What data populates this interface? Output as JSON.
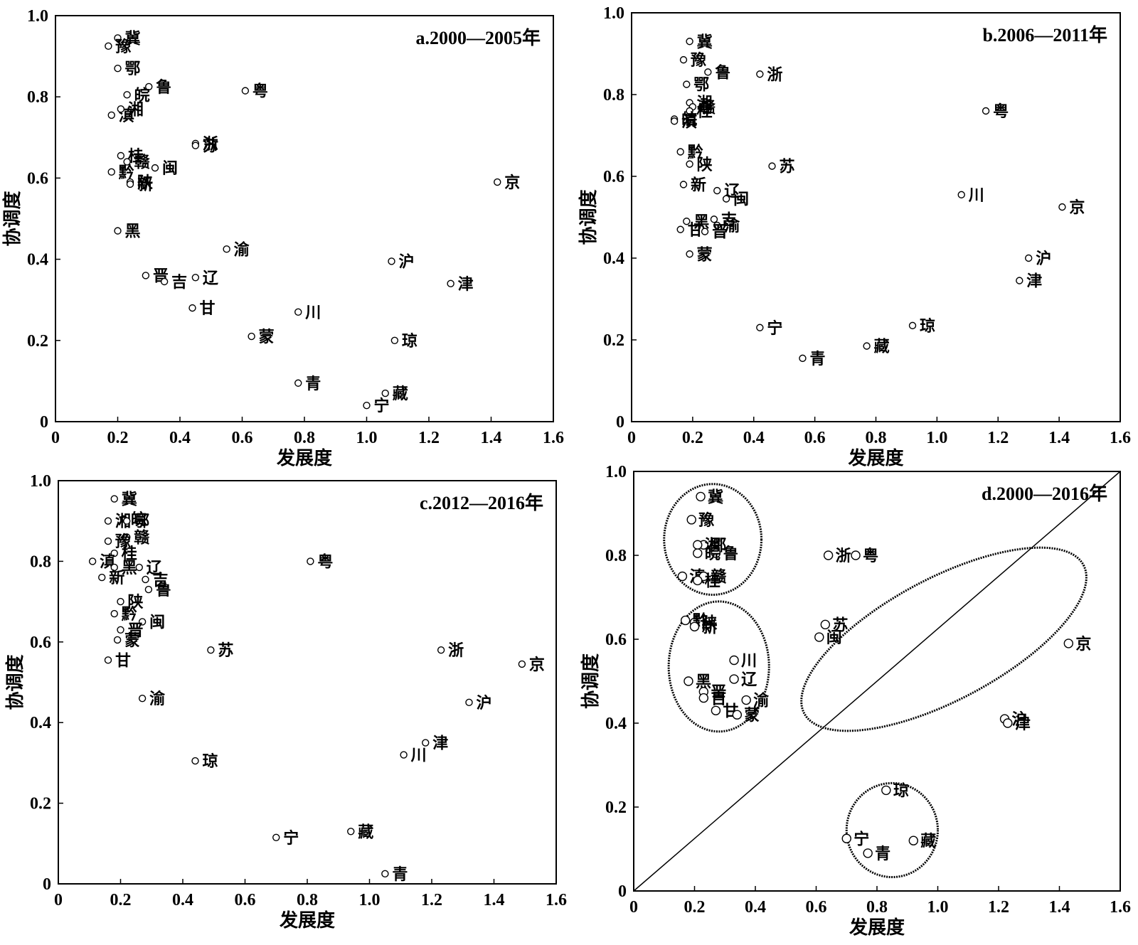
{
  "chart_data": [
    {
      "type": "scatter",
      "title": "a.2000—2005年",
      "xlabel": "发展度",
      "ylabel": "协调度",
      "xlim": [
        0,
        1.6
      ],
      "ylim": [
        0,
        1.0
      ],
      "xticks": [
        "0",
        "0.2",
        "0.4",
        "0.6",
        "0.8",
        "1.0",
        "1.2",
        "1.4",
        "1.6"
      ],
      "yticks": [
        "0",
        "0.2",
        "0.4",
        "0.6",
        "0.8",
        "1.0"
      ],
      "points": [
        {
          "label": "冀",
          "x": 0.2,
          "y": 0.945
        },
        {
          "label": "豫",
          "x": 0.17,
          "y": 0.925
        },
        {
          "label": "鄂",
          "x": 0.2,
          "y": 0.87
        },
        {
          "label": "鲁",
          "x": 0.3,
          "y": 0.825
        },
        {
          "label": "粤",
          "x": 0.61,
          "y": 0.815
        },
        {
          "label": "滇",
          "x": 0.18,
          "y": 0.755
        },
        {
          "label": "皖",
          "x": 0.23,
          "y": 0.805
        },
        {
          "label": "湘",
          "x": 0.21,
          "y": 0.77
        },
        {
          "label": "浙",
          "x": 0.45,
          "y": 0.685
        },
        {
          "label": "苏",
          "x": 0.45,
          "y": 0.68
        },
        {
          "label": "桂",
          "x": 0.21,
          "y": 0.655
        },
        {
          "label": "黔",
          "x": 0.18,
          "y": 0.615
        },
        {
          "label": "赣",
          "x": 0.23,
          "y": 0.64
        },
        {
          "label": "闽",
          "x": 0.32,
          "y": 0.625
        },
        {
          "label": "陕",
          "x": 0.24,
          "y": 0.59
        },
        {
          "label": "新",
          "x": 0.24,
          "y": 0.585
        },
        {
          "label": "京",
          "x": 1.42,
          "y": 0.59
        },
        {
          "label": "黑",
          "x": 0.2,
          "y": 0.47
        },
        {
          "label": "渝",
          "x": 0.55,
          "y": 0.425
        },
        {
          "label": "晋",
          "x": 0.29,
          "y": 0.36
        },
        {
          "label": "吉",
          "x": 0.35,
          "y": 0.345
        },
        {
          "label": "辽",
          "x": 0.45,
          "y": 0.355
        },
        {
          "label": "沪",
          "x": 1.08,
          "y": 0.395
        },
        {
          "label": "津",
          "x": 1.27,
          "y": 0.34
        },
        {
          "label": "甘",
          "x": 0.44,
          "y": 0.28
        },
        {
          "label": "川",
          "x": 0.78,
          "y": 0.27
        },
        {
          "label": "蒙",
          "x": 0.63,
          "y": 0.21
        },
        {
          "label": "琼",
          "x": 1.09,
          "y": 0.2
        },
        {
          "label": "青",
          "x": 0.78,
          "y": 0.095
        },
        {
          "label": "藏",
          "x": 1.06,
          "y": 0.07
        },
        {
          "label": "宁",
          "x": 1.0,
          "y": 0.04
        }
      ]
    },
    {
      "type": "scatter",
      "title": "b.2006—2011年",
      "xlabel": "发展度",
      "ylabel": "协调度",
      "xlim": [
        0,
        1.6
      ],
      "ylim": [
        0,
        1.0
      ],
      "xticks": [
        "0",
        "0.2",
        "0.4",
        "0.6",
        "0.8",
        "1.0",
        "1.2",
        "1.4",
        "1.6"
      ],
      "yticks": [
        "0",
        "0.2",
        "0.4",
        "0.6",
        "0.8",
        "1.0"
      ],
      "points": [
        {
          "label": "冀",
          "x": 0.19,
          "y": 0.93
        },
        {
          "label": "豫",
          "x": 0.17,
          "y": 0.885
        },
        {
          "label": "鲁",
          "x": 0.25,
          "y": 0.855
        },
        {
          "label": "浙",
          "x": 0.42,
          "y": 0.85
        },
        {
          "label": "鄂",
          "x": 0.18,
          "y": 0.825
        },
        {
          "label": "湘",
          "x": 0.19,
          "y": 0.78
        },
        {
          "label": "赣",
          "x": 0.2,
          "y": 0.77
        },
        {
          "label": "桂",
          "x": 0.19,
          "y": 0.76
        },
        {
          "label": "皖",
          "x": 0.14,
          "y": 0.74
        },
        {
          "label": "粤",
          "x": 1.16,
          "y": 0.76
        },
        {
          "label": "滇",
          "x": 0.14,
          "y": 0.735
        },
        {
          "label": "黔",
          "x": 0.16,
          "y": 0.66
        },
        {
          "label": "陕",
          "x": 0.19,
          "y": 0.63
        },
        {
          "label": "苏",
          "x": 0.46,
          "y": 0.625
        },
        {
          "label": "新",
          "x": 0.17,
          "y": 0.58
        },
        {
          "label": "辽",
          "x": 0.28,
          "y": 0.565
        },
        {
          "label": "闽",
          "x": 0.31,
          "y": 0.545
        },
        {
          "label": "川",
          "x": 1.08,
          "y": 0.555
        },
        {
          "label": "京",
          "x": 1.41,
          "y": 0.525
        },
        {
          "label": "吉",
          "x": 0.27,
          "y": 0.495
        },
        {
          "label": "黑",
          "x": 0.18,
          "y": 0.49
        },
        {
          "label": "渝",
          "x": 0.28,
          "y": 0.48
        },
        {
          "label": "甘",
          "x": 0.16,
          "y": 0.47
        },
        {
          "label": "晋",
          "x": 0.24,
          "y": 0.465
        },
        {
          "label": "蒙",
          "x": 0.19,
          "y": 0.41
        },
        {
          "label": "沪",
          "x": 1.3,
          "y": 0.4
        },
        {
          "label": "津",
          "x": 1.27,
          "y": 0.345
        },
        {
          "label": "琼",
          "x": 0.92,
          "y": 0.235
        },
        {
          "label": "宁",
          "x": 0.42,
          "y": 0.23
        },
        {
          "label": "藏",
          "x": 0.77,
          "y": 0.185
        },
        {
          "label": "青",
          "x": 0.56,
          "y": 0.155
        }
      ]
    },
    {
      "type": "scatter",
      "title": "c.2012—2016年",
      "xlabel": "发展度",
      "ylabel": "协调度",
      "xlim": [
        0,
        1.6
      ],
      "ylim": [
        0,
        1.0
      ],
      "xticks": [
        "0",
        "0.2",
        "0.4",
        "0.6",
        "0.8",
        "1.0",
        "1.2",
        "1.4",
        "1.6"
      ],
      "yticks": [
        "0",
        "0.2",
        "0.4",
        "0.6",
        "0.8",
        "1.0"
      ],
      "points": [
        {
          "label": "冀",
          "x": 0.18,
          "y": 0.955
        },
        {
          "label": "皖",
          "x": 0.21,
          "y": 0.905
        },
        {
          "label": "湘",
          "x": 0.16,
          "y": 0.9
        },
        {
          "label": "鄂",
          "x": 0.22,
          "y": 0.9
        },
        {
          "label": "赣",
          "x": 0.22,
          "y": 0.86
        },
        {
          "label": "豫",
          "x": 0.16,
          "y": 0.85
        },
        {
          "label": "桂",
          "x": 0.18,
          "y": 0.82
        },
        {
          "label": "滇",
          "x": 0.11,
          "y": 0.8
        },
        {
          "label": "粤",
          "x": 0.81,
          "y": 0.8
        },
        {
          "label": "辽",
          "x": 0.26,
          "y": 0.785
        },
        {
          "label": "黑",
          "x": 0.18,
          "y": 0.785
        },
        {
          "label": "吉",
          "x": 0.28,
          "y": 0.755
        },
        {
          "label": "新",
          "x": 0.14,
          "y": 0.76
        },
        {
          "label": "鲁",
          "x": 0.29,
          "y": 0.73
        },
        {
          "label": "陕",
          "x": 0.2,
          "y": 0.7
        },
        {
          "label": "黔",
          "x": 0.18,
          "y": 0.67
        },
        {
          "label": "闽",
          "x": 0.27,
          "y": 0.65
        },
        {
          "label": "晋",
          "x": 0.2,
          "y": 0.63
        },
        {
          "label": "蒙",
          "x": 0.19,
          "y": 0.605
        },
        {
          "label": "苏",
          "x": 0.49,
          "y": 0.58
        },
        {
          "label": "浙",
          "x": 1.23,
          "y": 0.58
        },
        {
          "label": "甘",
          "x": 0.16,
          "y": 0.555
        },
        {
          "label": "京",
          "x": 1.49,
          "y": 0.545
        },
        {
          "label": "渝",
          "x": 0.27,
          "y": 0.46
        },
        {
          "label": "沪",
          "x": 1.32,
          "y": 0.45
        },
        {
          "label": "津",
          "x": 1.18,
          "y": 0.35
        },
        {
          "label": "川",
          "x": 1.11,
          "y": 0.32
        },
        {
          "label": "琼",
          "x": 0.44,
          "y": 0.305
        },
        {
          "label": "藏",
          "x": 0.94,
          "y": 0.13
        },
        {
          "label": "宁",
          "x": 0.7,
          "y": 0.115
        },
        {
          "label": "青",
          "x": 1.05,
          "y": 0.025
        }
      ]
    },
    {
      "type": "scatter",
      "title": "d.2000—2016年",
      "xlabel": "发展度",
      "ylabel": "协调度",
      "xlim": [
        0,
        1.6
      ],
      "ylim": [
        0,
        1.0
      ],
      "xticks": [
        "0",
        "0.2",
        "0.4",
        "0.6",
        "0.8",
        "1.0",
        "1.2",
        "1.4",
        "1.6"
      ],
      "yticks": [
        "0",
        "0.2",
        "0.4",
        "0.6",
        "0.8",
        "1.0"
      ],
      "reference_line": [
        [
          0,
          0
        ],
        [
          1.6,
          1.0
        ]
      ],
      "points": [
        {
          "label": "冀",
          "x": 0.22,
          "y": 0.94
        },
        {
          "label": "豫",
          "x": 0.19,
          "y": 0.885
        },
        {
          "label": "鄂",
          "x": 0.23,
          "y": 0.825
        },
        {
          "label": "湘",
          "x": 0.21,
          "y": 0.825
        },
        {
          "label": "鲁",
          "x": 0.27,
          "y": 0.805
        },
        {
          "label": "皖",
          "x": 0.21,
          "y": 0.805
        },
        {
          "label": "滇",
          "x": 0.16,
          "y": 0.75
        },
        {
          "label": "赣",
          "x": 0.23,
          "y": 0.75
        },
        {
          "label": "桂",
          "x": 0.21,
          "y": 0.74
        },
        {
          "label": "浙",
          "x": 0.64,
          "y": 0.8
        },
        {
          "label": "粤",
          "x": 0.73,
          "y": 0.8
        },
        {
          "label": "陕",
          "x": 0.2,
          "y": 0.64
        },
        {
          "label": "苏",
          "x": 0.63,
          "y": 0.635
        },
        {
          "label": "黔",
          "x": 0.17,
          "y": 0.645
        },
        {
          "label": "新",
          "x": 0.2,
          "y": 0.63
        },
        {
          "label": "闽",
          "x": 0.61,
          "y": 0.605
        },
        {
          "label": "京",
          "x": 1.43,
          "y": 0.59
        },
        {
          "label": "川",
          "x": 0.33,
          "y": 0.55
        },
        {
          "label": "辽",
          "x": 0.33,
          "y": 0.505
        },
        {
          "label": "黑",
          "x": 0.18,
          "y": 0.5
        },
        {
          "label": "晋",
          "x": 0.23,
          "y": 0.475
        },
        {
          "label": "吉",
          "x": 0.23,
          "y": 0.46
        },
        {
          "label": "渝",
          "x": 0.37,
          "y": 0.455
        },
        {
          "label": "甘",
          "x": 0.27,
          "y": 0.43
        },
        {
          "label": "蒙",
          "x": 0.34,
          "y": 0.42
        },
        {
          "label": "沪",
          "x": 1.22,
          "y": 0.41
        },
        {
          "label": "津",
          "x": 1.23,
          "y": 0.4
        },
        {
          "label": "琼",
          "x": 0.83,
          "y": 0.24
        },
        {
          "label": "宁",
          "x": 0.7,
          "y": 0.125
        },
        {
          "label": "藏",
          "x": 0.92,
          "y": 0.12
        },
        {
          "label": "青",
          "x": 0.77,
          "y": 0.09
        }
      ],
      "clusters": [
        {
          "cx": 0.26,
          "cy": 0.838,
          "rx": 0.16,
          "ry": 0.132
        },
        {
          "cx": 0.28,
          "cy": 0.535,
          "rx": 0.165,
          "ry": 0.155
        },
        {
          "cx": 1.02,
          "cy": 0.6,
          "rx": 0.52,
          "ry": 0.145,
          "angle": -28
        },
        {
          "cx": 0.85,
          "cy": 0.145,
          "rx": 0.15,
          "ry": 0.112
        }
      ]
    }
  ]
}
